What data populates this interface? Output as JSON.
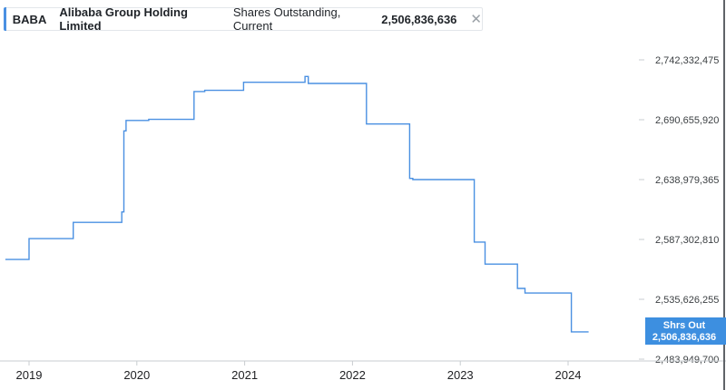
{
  "legend": {
    "ticker": "BABA",
    "company": "Alibaba Group Holding Limited",
    "metric": "Shares Outstanding, Current",
    "value": "2,506,836,636",
    "close_glyph": "✕"
  },
  "badge": {
    "label": "Shrs Out",
    "value": "2,506,836,636"
  },
  "colors": {
    "line": "#4a90e2",
    "badge": "#3d8fe0",
    "axis": "#c8ccd0",
    "right_edge": "#5f6368"
  },
  "chart_data": {
    "type": "line",
    "title": "",
    "xlabel": "",
    "ylabel": "",
    "x_ticks": [
      "2019",
      "2020",
      "2021",
      "2022",
      "2023",
      "2024"
    ],
    "y_ticks": [
      "2,742,332,475",
      "2,690,655,920",
      "2,638,979,365",
      "2,587,302,810",
      "2,535,626,255",
      "2,483,949,700"
    ],
    "ylim": [
      2483949700,
      2742332475
    ],
    "xlim": [
      2018.78,
      2024.6
    ],
    "series": [
      {
        "name": "",
        "points": [
          [
            2018.78,
            2570000000
          ],
          [
            2019.0,
            2570000000
          ],
          [
            2019.0,
            2588000000
          ],
          [
            2019.41,
            2588000000
          ],
          [
            2019.41,
            2602000000
          ],
          [
            2019.86,
            2602000000
          ],
          [
            2019.86,
            2611000000
          ],
          [
            2019.88,
            2611000000
          ],
          [
            2019.88,
            2681000000
          ],
          [
            2019.9,
            2681000000
          ],
          [
            2019.9,
            2690000000
          ],
          [
            2020.11,
            2690000000
          ],
          [
            2020.11,
            2691000000
          ],
          [
            2020.53,
            2691000000
          ],
          [
            2020.53,
            2715000000
          ],
          [
            2020.63,
            2715000000
          ],
          [
            2020.63,
            2716000000
          ],
          [
            2020.99,
            2716000000
          ],
          [
            2020.99,
            2723000000
          ],
          [
            2021.56,
            2723000000
          ],
          [
            2021.56,
            2728000000
          ],
          [
            2021.59,
            2728000000
          ],
          [
            2021.59,
            2722000000
          ],
          [
            2022.13,
            2722000000
          ],
          [
            2022.13,
            2687000000
          ],
          [
            2022.53,
            2687000000
          ],
          [
            2022.53,
            2640000000
          ],
          [
            2022.56,
            2640000000
          ],
          [
            2022.56,
            2639000000
          ],
          [
            2023.13,
            2639000000
          ],
          [
            2023.13,
            2585000000
          ],
          [
            2023.23,
            2585000000
          ],
          [
            2023.23,
            2566000000
          ],
          [
            2023.53,
            2566000000
          ],
          [
            2023.53,
            2545000000
          ],
          [
            2023.6,
            2545000000
          ],
          [
            2023.6,
            2541000000
          ],
          [
            2024.03,
            2541000000
          ],
          [
            2024.03,
            2507500000
          ],
          [
            2024.19,
            2507500000
          ]
        ]
      }
    ],
    "grid": false,
    "legend_position": "top-left"
  }
}
